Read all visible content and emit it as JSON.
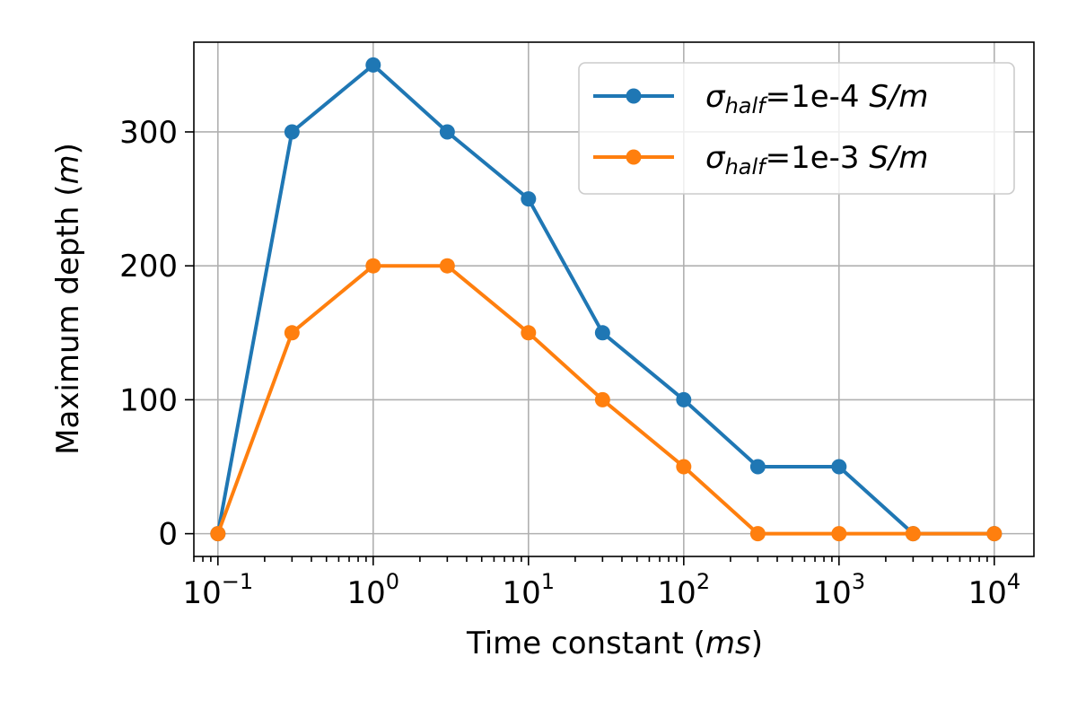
{
  "chart_data": {
    "type": "line",
    "xlabel_prefix": "Time constant (",
    "xlabel_unit": "ms",
    "xlabel_suffix": ")",
    "ylabel_prefix": "Maximum depth (",
    "ylabel_unit": "m",
    "ylabel_suffix": ")",
    "x_scale": "log",
    "xlim": [
      0.07,
      18000
    ],
    "ylim": [
      -17,
      367
    ],
    "grid": true,
    "legend_position": "top-right",
    "x_ticks": [
      {
        "value": 0.1,
        "base": "10",
        "exp": "−1"
      },
      {
        "value": 1,
        "base": "10",
        "exp": "0"
      },
      {
        "value": 10,
        "base": "10",
        "exp": "1"
      },
      {
        "value": 100,
        "base": "10",
        "exp": "2"
      },
      {
        "value": 1000,
        "base": "10",
        "exp": "3"
      },
      {
        "value": 10000,
        "base": "10",
        "exp": "4"
      }
    ],
    "y_ticks": [
      0,
      100,
      200,
      300
    ],
    "x": [
      0.1,
      0.3,
      1,
      3,
      10,
      30,
      100,
      300,
      1000,
      3000,
      10000
    ],
    "series": [
      {
        "name_symbol": "σ",
        "name_sub": "half",
        "name_value": "=1e-4 ",
        "name_unit": "S/m",
        "color": "#1f77b4",
        "values": [
          0,
          300,
          350,
          300,
          250,
          150,
          100,
          50,
          50,
          0,
          0
        ]
      },
      {
        "name_symbol": "σ",
        "name_sub": "half",
        "name_value": "=1e-3 ",
        "name_unit": "S/m",
        "color": "#ff7f0e",
        "values": [
          0,
          150,
          200,
          200,
          150,
          100,
          50,
          0,
          0,
          0,
          0
        ]
      }
    ]
  }
}
